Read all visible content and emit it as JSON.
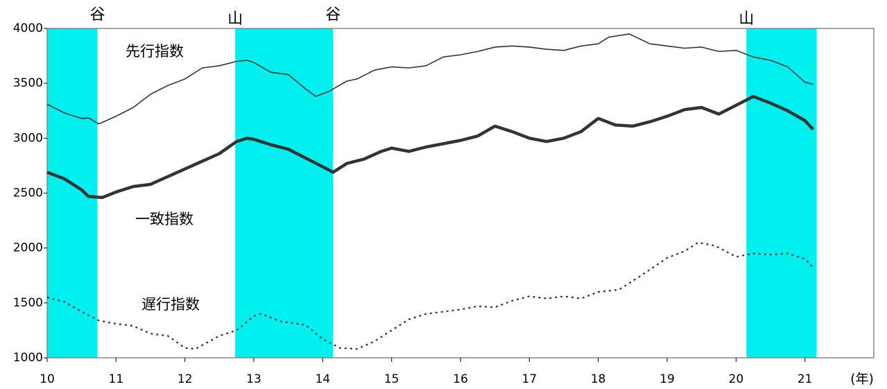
{
  "chart_data": {
    "type": "line",
    "xlim": [
      10,
      22
    ],
    "xticks": [
      10,
      11,
      12,
      13,
      14,
      15,
      16,
      17,
      18,
      19,
      20,
      21
    ],
    "ylim": [
      1000,
      4000
    ],
    "yticks": [
      1000,
      1500,
      2000,
      2500,
      3000,
      3500,
      4000
    ],
    "x_label": "(年)",
    "grid": false,
    "band_color": "#00f0f0",
    "bands": [
      [
        10,
        10.73
      ],
      [
        12.73,
        14.15
      ],
      [
        20.15,
        21.17
      ]
    ],
    "annotations": [
      {
        "text": "谷",
        "x": 10.73
      },
      {
        "text": "山",
        "x": 12.73
      },
      {
        "text": "谷",
        "x": 14.15
      },
      {
        "text": "山",
        "x": 20.15
      }
    ],
    "series": [
      {
        "name": "先行指数",
        "color": "#333333",
        "line_style": "thin",
        "x": [
          10.0,
          10.25,
          10.5,
          10.6,
          10.75,
          11.0,
          11.25,
          11.5,
          11.75,
          12.0,
          12.25,
          12.5,
          12.75,
          12.9,
          13.0,
          13.25,
          13.5,
          13.75,
          13.9,
          14.1,
          14.35,
          14.5,
          14.75,
          15.0,
          15.25,
          15.5,
          15.75,
          16.0,
          16.25,
          16.5,
          16.75,
          17.0,
          17.25,
          17.5,
          17.75,
          18.0,
          18.15,
          18.45,
          18.75,
          19.0,
          19.25,
          19.5,
          19.75,
          20.0,
          20.25,
          20.5,
          20.75,
          21.0,
          21.12
        ],
        "values": [
          3310,
          3230,
          3180,
          3185,
          3130,
          3200,
          3280,
          3400,
          3480,
          3540,
          3640,
          3660,
          3700,
          3710,
          3690,
          3600,
          3580,
          3450,
          3380,
          3430,
          3520,
          3540,
          3620,
          3650,
          3640,
          3660,
          3740,
          3760,
          3790,
          3830,
          3840,
          3830,
          3810,
          3800,
          3840,
          3860,
          3920,
          3950,
          3860,
          3840,
          3820,
          3830,
          3790,
          3800,
          3740,
          3710,
          3650,
          3510,
          3490
        ]
      },
      {
        "name": "一致指数",
        "color": "#333333",
        "line_style": "bold",
        "x": [
          10.0,
          10.25,
          10.5,
          10.6,
          10.8,
          11.0,
          11.25,
          11.5,
          11.75,
          12.0,
          12.25,
          12.5,
          12.75,
          12.9,
          13.0,
          13.25,
          13.5,
          13.75,
          14.0,
          14.15,
          14.35,
          14.6,
          14.85,
          15.0,
          15.25,
          15.5,
          15.75,
          16.0,
          16.25,
          16.5,
          16.75,
          17.0,
          17.25,
          17.5,
          17.75,
          18.0,
          18.25,
          18.5,
          18.75,
          19.0,
          19.25,
          19.5,
          19.75,
          20.0,
          20.25,
          20.5,
          20.75,
          21.0,
          21.12
        ],
        "values": [
          2690,
          2630,
          2530,
          2470,
          2460,
          2510,
          2560,
          2580,
          2650,
          2720,
          2790,
          2860,
          2970,
          3000,
          2990,
          2940,
          2900,
          2820,
          2740,
          2690,
          2770,
          2810,
          2880,
          2910,
          2880,
          2920,
          2950,
          2980,
          3020,
          3110,
          3060,
          3000,
          2970,
          3000,
          3060,
          3180,
          3120,
          3110,
          3150,
          3200,
          3260,
          3280,
          3220,
          3300,
          3380,
          3320,
          3250,
          3160,
          3080
        ]
      },
      {
        "name": "遅行指数",
        "color": "#333333",
        "line_style": "dotted",
        "x": [
          10.0,
          10.25,
          10.5,
          10.75,
          11.0,
          11.25,
          11.5,
          11.75,
          12.0,
          12.15,
          12.5,
          12.75,
          13.0,
          13.1,
          13.4,
          13.75,
          14.0,
          14.25,
          14.5,
          14.75,
          15.0,
          15.25,
          15.5,
          15.75,
          16.0,
          16.25,
          16.5,
          16.75,
          17.0,
          17.25,
          17.5,
          17.75,
          18.0,
          18.3,
          18.6,
          19.0,
          19.25,
          19.45,
          19.7,
          20.0,
          20.25,
          20.5,
          20.75,
          21.0,
          21.12
        ],
        "values": [
          1550,
          1510,
          1420,
          1340,
          1310,
          1290,
          1220,
          1200,
          1090,
          1080,
          1200,
          1250,
          1380,
          1400,
          1330,
          1300,
          1170,
          1090,
          1080,
          1150,
          1250,
          1350,
          1400,
          1420,
          1440,
          1470,
          1460,
          1520,
          1560,
          1540,
          1560,
          1540,
          1600,
          1620,
          1740,
          1910,
          1970,
          2050,
          2020,
          1920,
          1950,
          1940,
          1950,
          1900,
          1820
        ]
      }
    ]
  }
}
